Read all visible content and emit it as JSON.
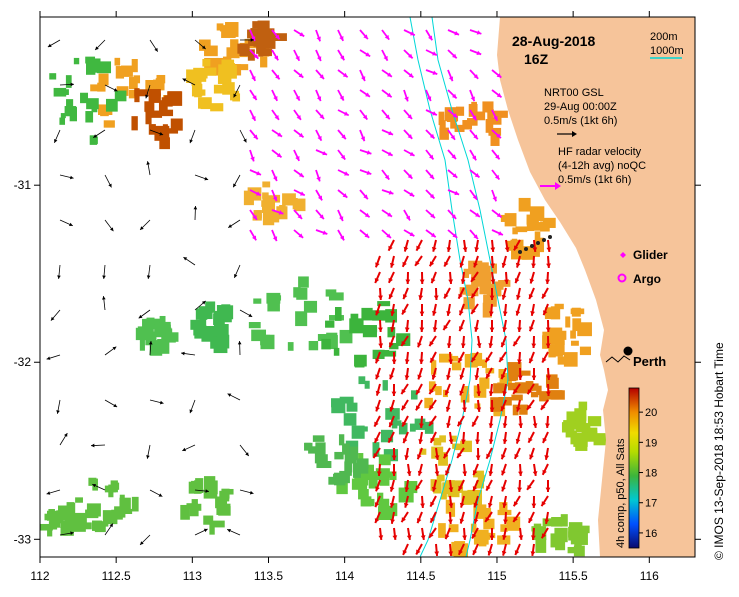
{
  "map": {
    "date": "28-Aug-2018",
    "hour": "16Z",
    "region": "Perth",
    "x_ticks": [
      "112",
      "112.5",
      "113",
      "113.5",
      "114",
      "114.5",
      "115",
      "115.5",
      "116"
    ],
    "y_ticks": [
      "-31",
      "-32",
      "-33"
    ],
    "lon_range": [
      112,
      116.3
    ],
    "lat_range": [
      -30.05,
      -33.1
    ],
    "colors": {
      "land": "#f6c49a",
      "ocean": "#ffffff",
      "contour": "#00d7d7",
      "radar_arrow": "#e60000",
      "gsl_arrow": "#ff00ff",
      "glider": "#ff00ff",
      "argo": "#ff00ff"
    }
  },
  "contours": {
    "depth_1": "200m",
    "depth_2": "1000m"
  },
  "gsl": {
    "title": "NRT00 GSL",
    "time": "29-Aug 00:00Z",
    "scale": "0.5m/s (1kt 6h)"
  },
  "radar": {
    "line1": "HF radar velocity",
    "line2": "(4-12h avg) noQC",
    "scale": "0.5m/s (1kt 6h)"
  },
  "legend": {
    "glider": "Glider",
    "argo": "Argo"
  },
  "places": {
    "perth": "Perth"
  },
  "colorbar": {
    "ticks": [
      "16",
      "17",
      "18",
      "19",
      "20"
    ],
    "range": [
      15.5,
      20.8
    ],
    "label": "4h comp, p50, All Sats"
  },
  "credit": "© IMOS 13-Sep-2018 18:53 Hobart Time"
}
